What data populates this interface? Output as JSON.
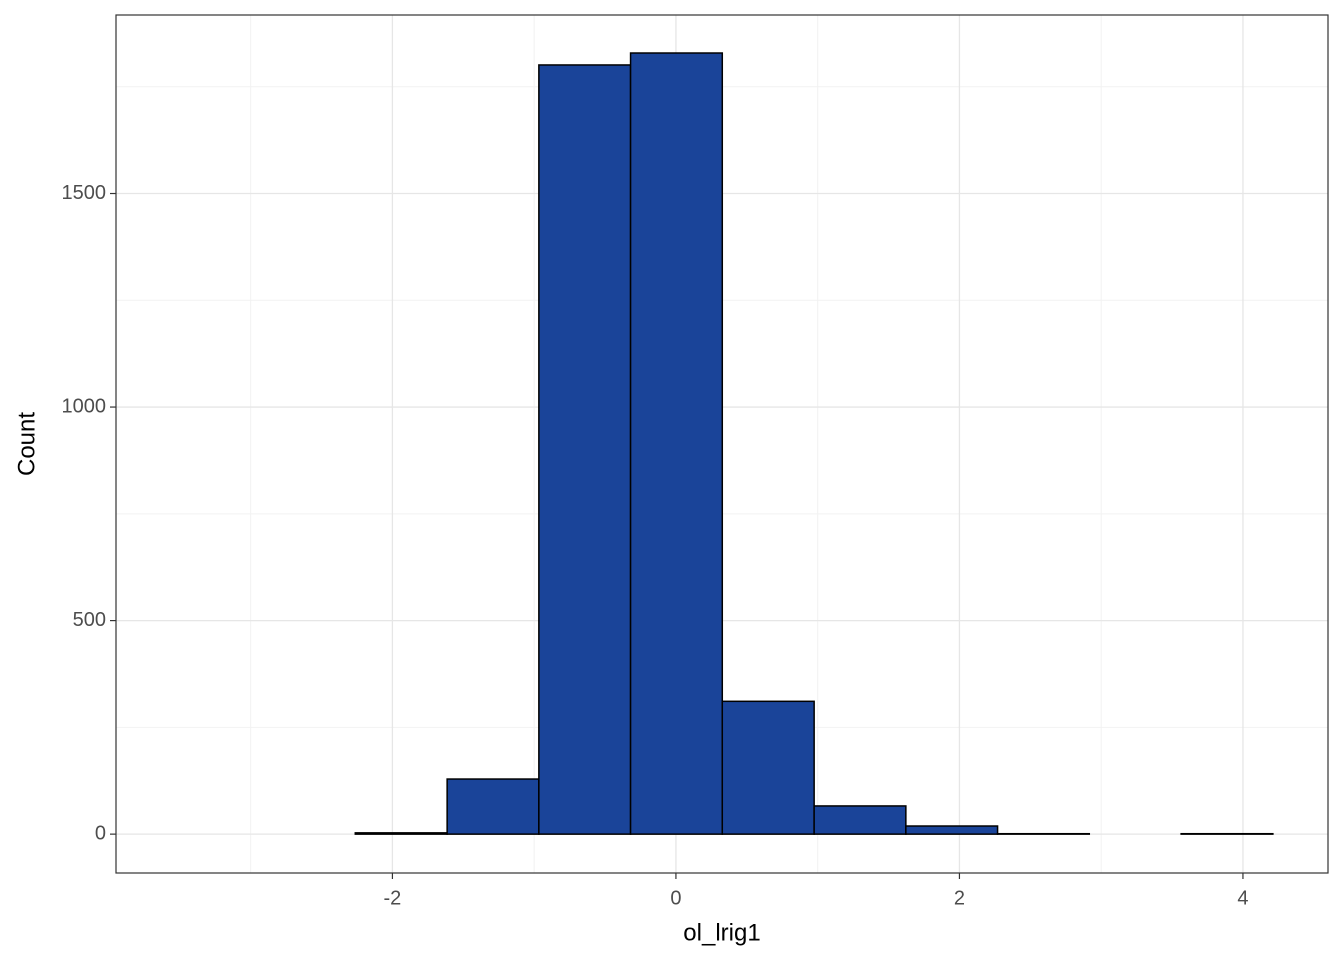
{
  "chart_data": {
    "type": "histogram",
    "x_label": "ol_lrig1",
    "y_label": "Count",
    "bins": [
      -3.556,
      -2.909,
      -2.262,
      -1.614,
      -0.967,
      -0.32,
      0.327,
      0.975,
      1.622,
      2.269,
      2.916,
      3.564,
      4.211
    ],
    "values": [
      0,
      0,
      3,
      129,
      1801,
      1829,
      311,
      66,
      19,
      1,
      0,
      1
    ],
    "color": "#1a4499",
    "xlim": [
      -3.95,
      4.6
    ],
    "xticks": [
      -2,
      0,
      2,
      4
    ],
    "ylim": [
      -91,
      1918
    ],
    "yticks": [
      0,
      500,
      1000,
      1500
    ],
    "grid": true
  }
}
